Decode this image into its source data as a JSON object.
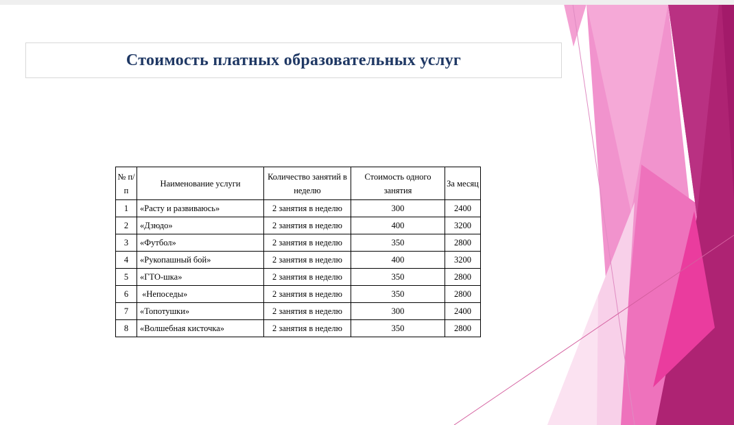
{
  "slide": {
    "title": "Стоимость платных образовательных услуг"
  },
  "table": {
    "columns": [
      "№ п/п",
      "Наименование услуги",
      "Количество занятий в неделю",
      "Стоимость одного занятия",
      "За месяц"
    ],
    "rows": [
      {
        "num": "1",
        "name": "«Расту и развиваюсь»",
        "qty": "2 занятия в неделю",
        "price": "300",
        "month": "2400"
      },
      {
        "num": "2",
        "name": "«Дзюдо»",
        "qty": "2 занятия в неделю",
        "price": "400",
        "month": "3200"
      },
      {
        "num": "3",
        "name": "«Футбол»",
        "qty": "2 занятия в неделю",
        "price": "350",
        "month": "2800"
      },
      {
        "num": "4",
        "name": "«Рукопашный бой»",
        "qty": "2 занятия в неделю",
        "price": "400",
        "month": "3200"
      },
      {
        "num": "5",
        "name": "«ГТО-шка»",
        "qty": "2 занятия в неделю",
        "price": "350",
        "month": "2800"
      },
      {
        "num": "6",
        "name": " «Непоседы»",
        "qty": "2 занятия в неделю",
        "price": "350",
        "month": "2800"
      },
      {
        "num": "7",
        "name": "«Топотушки»",
        "qty": "2 занятия в неделю",
        "price": "300",
        "month": "2400"
      },
      {
        "num": "8",
        "name": "«Волшебная кисточка»",
        "qty": "2 занятия в неделю",
        "price": "350",
        "month": "2800"
      }
    ]
  },
  "theme": {
    "colors": {
      "top_strip": "#EFEFEF",
      "title_text": "#1F3864",
      "title_border": "#D8D8D8",
      "table_border": "#000000",
      "deco_wedge": "#F3A0D2",
      "deco_band": "#F193CD",
      "deco_band_facet": "#F5A9D7",
      "deco_medium": "#EE72BC",
      "deco_pale": "#F8D0E9",
      "deco_paler": "#FBE2F1",
      "deco_dark": "#AE2373",
      "deco_dark_facet": "#B93182",
      "deco_darker": "#A31A6A",
      "deco_bright": "#EA3C9E",
      "deco_line1": "#E08BC2",
      "deco_line2": "#D45F9F"
    }
  }
}
